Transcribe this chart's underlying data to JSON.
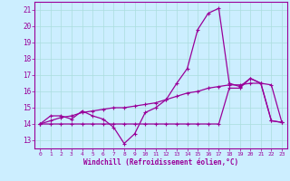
{
  "xlabel": "Windchill (Refroidissement éolien,°C)",
  "bg_color": "#cceeff",
  "line_color": "#990099",
  "grid_color": "#aadddd",
  "xlim": [
    -0.5,
    23.5
  ],
  "ylim": [
    12.5,
    21.5
  ],
  "yticks": [
    13,
    14,
    15,
    16,
    17,
    18,
    19,
    20,
    21
  ],
  "xticks": [
    0,
    1,
    2,
    3,
    4,
    5,
    6,
    7,
    8,
    9,
    10,
    11,
    12,
    13,
    14,
    15,
    16,
    17,
    18,
    19,
    20,
    21,
    22,
    23
  ],
  "series1_x": [
    0,
    1,
    2,
    3,
    4,
    5,
    6,
    7,
    8,
    9,
    10,
    11,
    12,
    13,
    14,
    15,
    16,
    17,
    18,
    19,
    20,
    21,
    22,
    23
  ],
  "series1_y": [
    14.0,
    14.5,
    14.5,
    14.3,
    14.8,
    14.5,
    14.3,
    13.8,
    12.8,
    13.4,
    14.7,
    15.0,
    15.5,
    16.5,
    17.4,
    19.8,
    20.8,
    21.1,
    16.5,
    16.3,
    16.8,
    16.5,
    14.2,
    14.1
  ],
  "series2_x": [
    0,
    1,
    2,
    3,
    4,
    5,
    6,
    7,
    8,
    9,
    10,
    11,
    12,
    13,
    14,
    15,
    16,
    17,
    18,
    19,
    20,
    21,
    22,
    23
  ],
  "series2_y": [
    14.0,
    14.2,
    14.4,
    14.5,
    14.7,
    14.8,
    14.9,
    15.0,
    15.0,
    15.1,
    15.2,
    15.3,
    15.5,
    15.7,
    15.9,
    16.0,
    16.2,
    16.3,
    16.4,
    16.4,
    16.5,
    16.5,
    16.4,
    14.1
  ],
  "series3_x": [
    0,
    1,
    2,
    3,
    4,
    5,
    6,
    7,
    8,
    9,
    10,
    11,
    12,
    13,
    14,
    15,
    16,
    17,
    18,
    19,
    20,
    21,
    22,
    23
  ],
  "series3_y": [
    14.0,
    14.0,
    14.0,
    14.0,
    14.0,
    14.0,
    14.0,
    14.0,
    14.0,
    14.0,
    14.0,
    14.0,
    14.0,
    14.0,
    14.0,
    14.0,
    14.0,
    14.0,
    16.2,
    16.2,
    16.8,
    16.5,
    14.2,
    14.1
  ]
}
